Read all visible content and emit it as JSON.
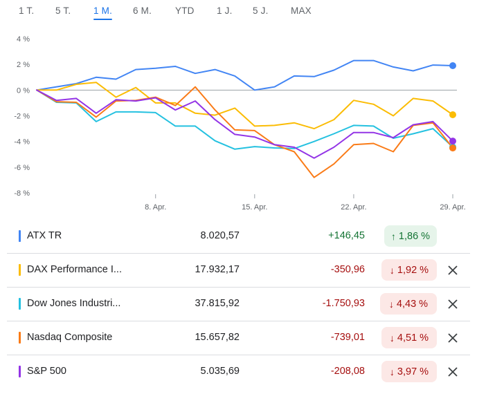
{
  "range_tabs": [
    {
      "label": "1 T.",
      "active": false
    },
    {
      "label": "5 T.",
      "active": false
    },
    {
      "label": "1 M.",
      "active": true
    },
    {
      "label": "6 M.",
      "active": false
    },
    {
      "label": "YTD",
      "active": false
    },
    {
      "label": "1 J.",
      "active": false
    },
    {
      "label": "5 J.",
      "active": false
    },
    {
      "label": "MAX",
      "active": false
    }
  ],
  "chart_data": {
    "type": "line",
    "y_unit": "%",
    "ylim": [
      -8,
      4
    ],
    "y_ticks": [
      "4 %",
      "2 %",
      "0 %",
      "-2 %",
      "-4 %",
      "-6 %",
      "-8 %"
    ],
    "x_ticks": [
      {
        "index": 6,
        "label": "8. Apr."
      },
      {
        "index": 11,
        "label": "15. Apr."
      },
      {
        "index": 16,
        "label": "22. Apr."
      },
      {
        "index": 21,
        "label": "29. Apr."
      }
    ],
    "zero_line": true,
    "series": [
      {
        "name": "ATX TR",
        "color": "#4285f4",
        "values": [
          0,
          null,
          0.5,
          1.0,
          0.85,
          1.6,
          1.7,
          1.85,
          1.3,
          1.6,
          1.1,
          0.0,
          0.25,
          1.1,
          1.05,
          1.55,
          2.3,
          2.3,
          1.8,
          1.5,
          1.95,
          1.9
        ]
      },
      {
        "name": "DAX Performance I...",
        "color": "#fbbc04",
        "values": [
          0,
          0.0,
          0.45,
          0.6,
          -0.55,
          0.2,
          -1.0,
          -1.0,
          -1.8,
          -1.95,
          -1.4,
          -2.8,
          -2.75,
          -2.55,
          -3.0,
          -2.3,
          -0.8,
          -1.1,
          -2.0,
          -0.65,
          -0.85,
          -1.92
        ]
      },
      {
        "name": "Dow Jones Industri...",
        "color": "#24c1e0",
        "values": [
          0,
          -0.95,
          -1.0,
          -2.45,
          -1.7,
          -1.7,
          -1.75,
          -2.8,
          -2.8,
          -3.95,
          -4.6,
          -4.4,
          -4.5,
          -4.55,
          -4.0,
          -3.4,
          -2.75,
          -2.8,
          -3.75,
          -3.4,
          -3.0,
          -4.43
        ]
      },
      {
        "name": "Nasdaq Composite",
        "color": "#fa7b17",
        "values": [
          0,
          -0.9,
          -0.95,
          -2.1,
          -0.85,
          -0.8,
          -0.55,
          -1.2,
          0.25,
          -1.55,
          -3.1,
          -3.15,
          -4.25,
          -4.8,
          -6.8,
          -5.75,
          -4.25,
          -4.15,
          -4.8,
          -2.75,
          -2.55,
          -4.51
        ]
      },
      {
        "name": "S&P 500",
        "color": "#9334e6",
        "values": [
          0,
          -0.8,
          -0.65,
          -1.8,
          -0.75,
          -0.85,
          -0.6,
          -1.55,
          -0.85,
          -2.3,
          -3.45,
          -3.65,
          -4.25,
          -4.45,
          -5.3,
          -4.45,
          -3.3,
          -3.3,
          -3.7,
          -2.7,
          -2.45,
          -3.97
        ]
      }
    ]
  },
  "rows": [
    {
      "name": "ATX TR",
      "color": "#4285f4",
      "price": "8.020,57",
      "change": "+146,45",
      "pct": "1,86 %",
      "direction": "up",
      "arrow": "↑",
      "removable": false
    },
    {
      "name": "DAX Performance I...",
      "color": "#fbbc04",
      "price": "17.932,17",
      "change": "-350,96",
      "pct": "1,92 %",
      "direction": "down",
      "arrow": "↓",
      "removable": true
    },
    {
      "name": "Dow Jones Industri...",
      "color": "#24c1e0",
      "price": "37.815,92",
      "change": "-1.750,93",
      "pct": "4,43 %",
      "direction": "down",
      "arrow": "↓",
      "removable": true
    },
    {
      "name": "Nasdaq Composite",
      "color": "#fa7b17",
      "price": "15.657,82",
      "change": "-739,01",
      "pct": "4,51 %",
      "direction": "down",
      "arrow": "↓",
      "removable": true
    },
    {
      "name": "S&P 500",
      "color": "#9334e6",
      "price": "5.035,69",
      "change": "-208,08",
      "pct": "3,97 %",
      "direction": "down",
      "arrow": "↓",
      "removable": true
    }
  ]
}
